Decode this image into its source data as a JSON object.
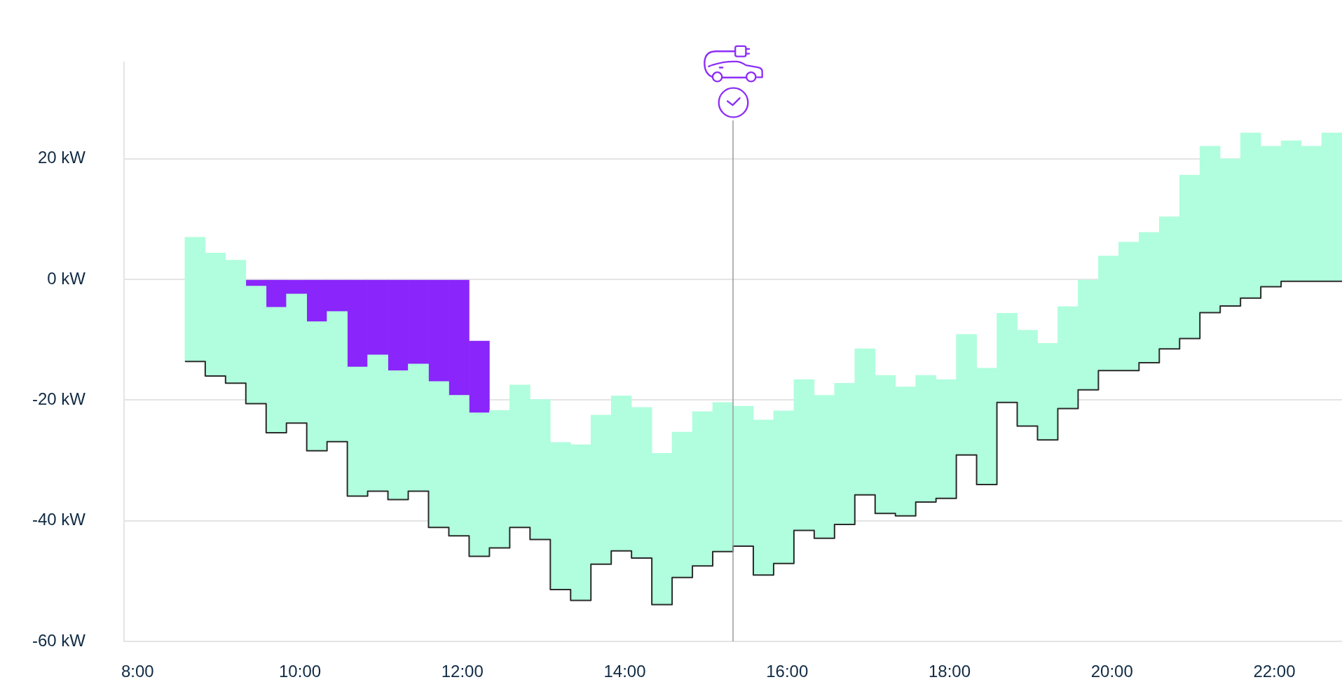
{
  "chart_data": {
    "type": "bar",
    "x": [
      8.7083,
      8.9583,
      9.2083,
      9.4583,
      9.7083,
      9.9583,
      10.2083,
      10.4583,
      10.7083,
      10.9583,
      11.2083,
      11.4583,
      11.7083,
      11.9583,
      12.2083,
      12.4583,
      12.7083,
      12.9583,
      13.2083,
      13.4583,
      13.7083,
      13.9583,
      14.2083,
      14.4583,
      14.7083,
      14.9583,
      15.2083,
      15.4583,
      15.7083,
      15.9583,
      16.2083,
      16.4583,
      16.7083,
      16.9583,
      17.2083,
      17.4583,
      17.7083,
      17.9583,
      18.2083,
      18.4583,
      18.7083,
      18.9583,
      19.2083,
      19.4583,
      19.7083,
      19.9583,
      20.2083,
      20.4583,
      20.7083,
      20.9583,
      21.2083,
      21.4583,
      21.7083,
      21.9583,
      22.2083,
      22.4583,
      22.7083
    ],
    "xlim": [
      7.8333,
      22.8333
    ],
    "xticks": [
      {
        "value": 8,
        "label": "8:00"
      },
      {
        "value": 10,
        "label": "10:00"
      },
      {
        "value": 12,
        "label": "12:00"
      },
      {
        "value": 14,
        "label": "14:00"
      },
      {
        "value": 16,
        "label": "16:00"
      },
      {
        "value": 18,
        "label": "18:00"
      },
      {
        "value": 20,
        "label": "20:00"
      },
      {
        "value": 22,
        "label": "22:00"
      }
    ],
    "ylim": [
      -60,
      36
    ],
    "yticks": [
      {
        "value": -60,
        "label": "-60 kW"
      },
      {
        "value": -40,
        "label": "-40 kW"
      },
      {
        "value": -20,
        "label": "-20 kW"
      },
      {
        "value": 0,
        "label": "0 kW"
      },
      {
        "value": 20,
        "label": "20 kW"
      }
    ],
    "grid": "y",
    "series": [
      {
        "color": "#b0fedd",
        "base": [
          -13.6,
          -16.0,
          -17.2,
          -20.6,
          -25.4,
          -23.8,
          -28.4,
          -26.9,
          -35.9,
          -35.1,
          -36.5,
          -35.1,
          -41.1,
          -42.5,
          -45.9,
          -44.5,
          -41.1,
          -43.1,
          -51.4,
          -53.2,
          -47.2,
          -45.0,
          -46.2,
          -53.9,
          -49.4,
          -47.5,
          -45.1,
          -44.2,
          -49.0,
          -47.1,
          -41.6,
          -42.9,
          -40.6,
          -35.7,
          -38.8,
          -39.2,
          -36.9,
          -36.3,
          -29.1,
          -34.0,
          -20.4,
          -24.3,
          -26.6,
          -21.4,
          -18.3,
          -15.1,
          -15.1,
          -13.8,
          -11.5,
          -9.8,
          -5.5,
          -4.4,
          -3.1,
          -1.2,
          -0.3,
          -0.3,
          -0.3
        ],
        "values": [
          20.6,
          20.4,
          20.4,
          19.5,
          20.8,
          21.4,
          21.4,
          21.6,
          21.4,
          22.6,
          21.4,
          21.1,
          24.2,
          23.3,
          23.8,
          22.8,
          23.6,
          23.2,
          24.4,
          25.8,
          24.7,
          25.7,
          25.0,
          25.1,
          24.1,
          25.6,
          24.7,
          23.2,
          25.7,
          25.3,
          25.0,
          23.7,
          23.4,
          24.2,
          22.9,
          21.4,
          21.0,
          19.7,
          20.0,
          19.3,
          14.8,
          15.9,
          16.0,
          16.9,
          18.2,
          19.0,
          21.3,
          21.6,
          21.9,
          27.1,
          27.6,
          24.4,
          27.4,
          23.3,
          23.3,
          22.4,
          24.6
        ]
      },
      {
        "color": "#8a25fb",
        "x": [
          9.4583,
          9.7083,
          9.9583,
          10.2083,
          10.4583,
          10.7083,
          10.9583,
          11.2083,
          11.4583,
          11.7083,
          11.9583,
          12.2083
        ],
        "base": [
          0,
          0,
          0,
          0,
          0,
          0,
          0,
          0,
          0,
          0,
          0,
          -10.2
        ],
        "values": [
          -1.1,
          -4.6,
          -2.4,
          -7.0,
          -5.3,
          -14.5,
          -12.5,
          -15.1,
          -14.0,
          -16.9,
          -19.2,
          -11.9
        ]
      },
      {
        "type": "step",
        "color": "#2b2b2b",
        "x": [
          8.5833,
          8.8333,
          9.0833,
          9.3333,
          9.5833,
          9.8333,
          10.0833,
          10.3333,
          10.5833,
          10.8333,
          11.0833,
          11.3333,
          11.5833,
          11.8333,
          12.0833,
          12.3333,
          12.5833,
          12.8333,
          13.0833,
          13.3333,
          13.5833,
          13.8333,
          14.0833,
          14.3333,
          14.5833,
          14.8333,
          15.0833,
          15.3333,
          15.5833,
          15.8333,
          16.0833,
          16.3333,
          16.5833,
          16.8333,
          17.0833,
          17.3333,
          17.5833,
          17.8333,
          18.0833,
          18.3333,
          18.5833,
          18.8333,
          19.0833,
          19.3333,
          19.5833,
          19.8333,
          20.0833,
          20.3333,
          20.5833,
          20.8333,
          21.0833,
          21.3333,
          21.5833,
          21.8333,
          22.0833,
          22.3333,
          22.5833,
          22.8333
        ],
        "values": [
          -13.6,
          -16.0,
          -17.2,
          -20.6,
          -25.4,
          -23.8,
          -28.4,
          -26.9,
          -35.9,
          -35.1,
          -36.5,
          -35.1,
          -41.1,
          -42.5,
          -45.9,
          -44.5,
          -41.1,
          -43.1,
          -51.4,
          -53.2,
          -47.2,
          -45.0,
          -46.2,
          -53.9,
          -49.4,
          -47.5,
          -45.1,
          -44.2,
          -49.0,
          -47.1,
          -41.6,
          -42.9,
          -40.6,
          -35.7,
          -38.8,
          -39.2,
          -36.9,
          -36.3,
          -29.1,
          -34.0,
          -20.4,
          -24.3,
          -26.6,
          -21.4,
          -18.3,
          -15.1,
          -15.1,
          -13.8,
          -11.5,
          -9.8,
          -5.5,
          -4.4,
          -3.1,
          -1.2,
          -0.3,
          -0.3,
          -0.3,
          -0.3
        ]
      }
    ],
    "ref_lines": [
      {
        "axis": "x",
        "value": 15.3333,
        "color": "#9a9a9a"
      }
    ]
  }
}
